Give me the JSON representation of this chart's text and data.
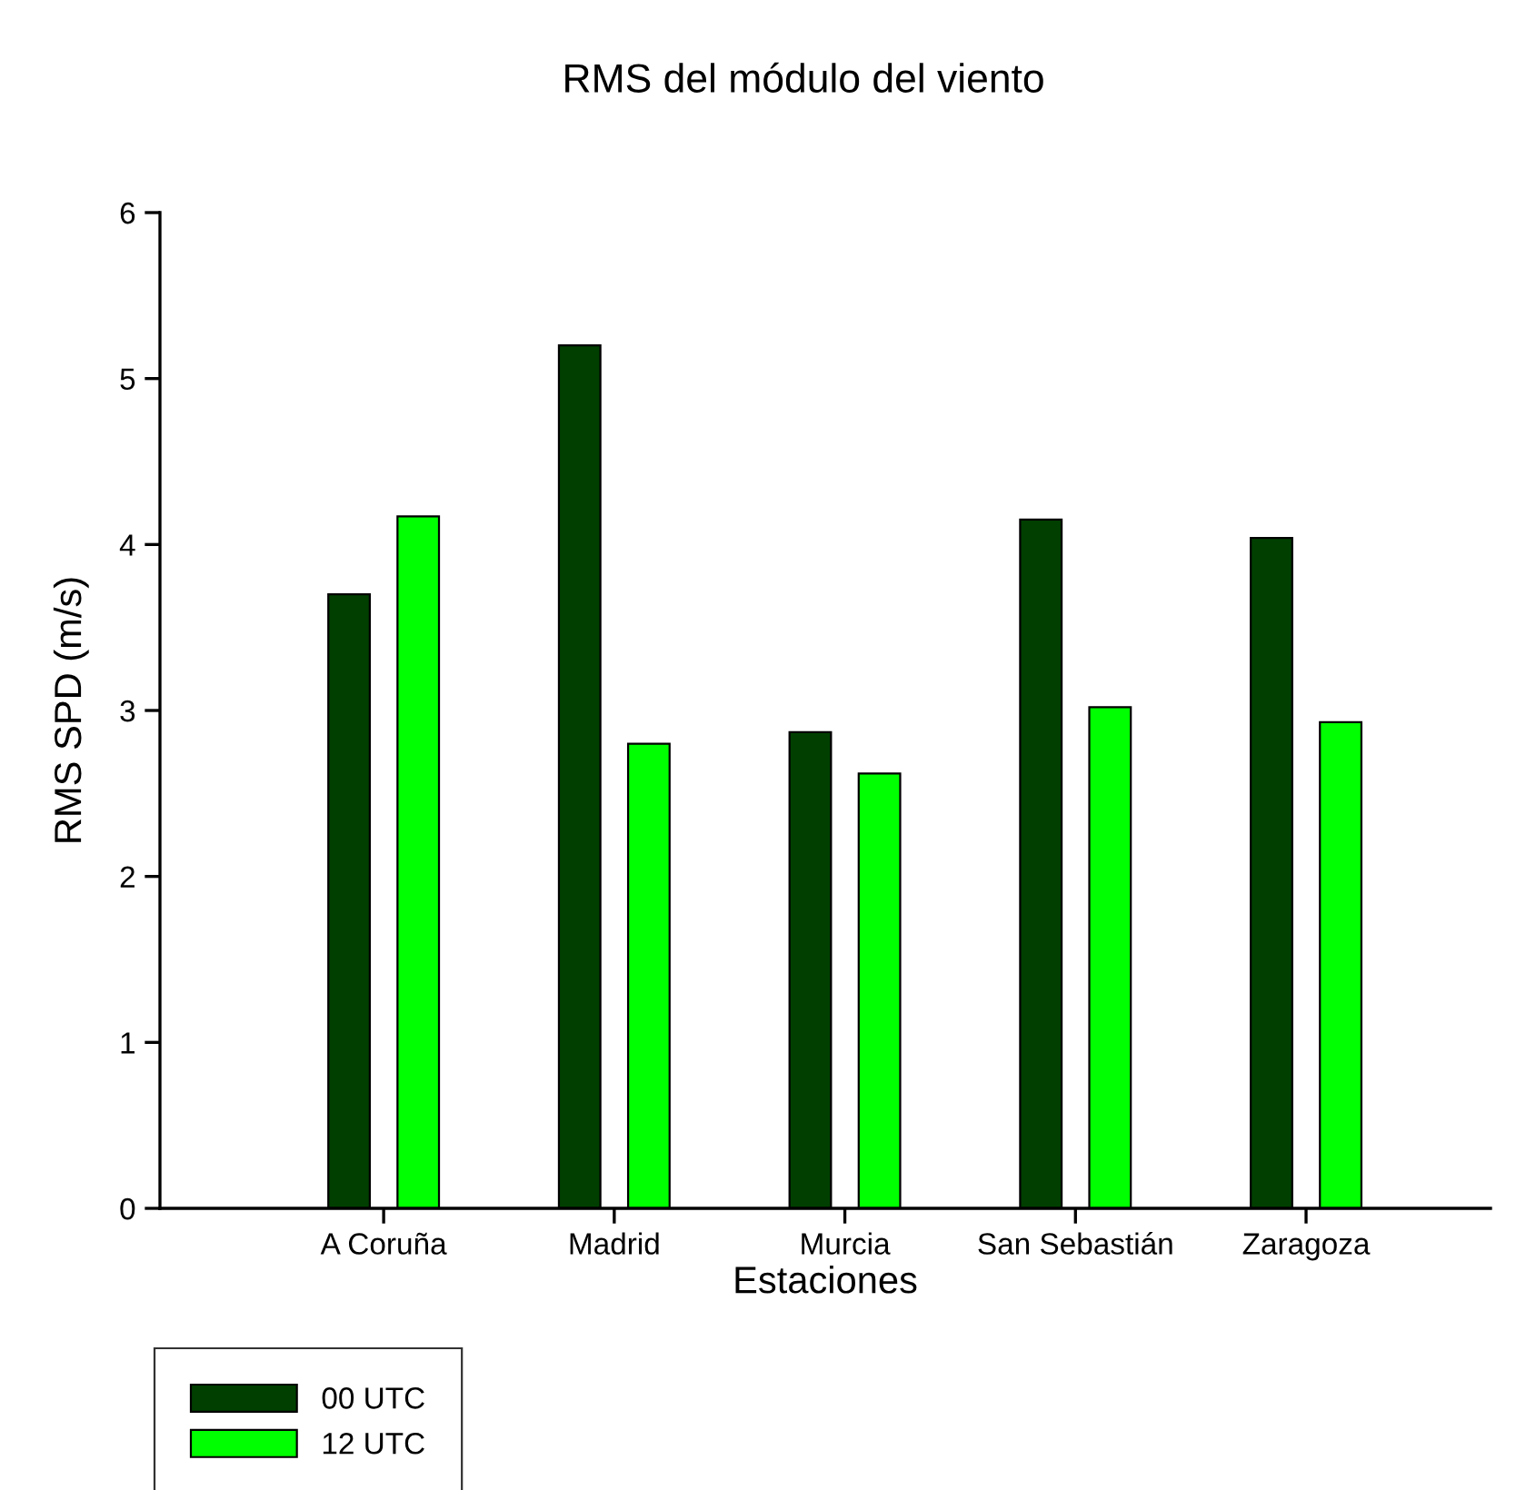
{
  "chart_data": {
    "type": "bar",
    "title": "RMS del módulo del viento",
    "xlabel": "Estaciones",
    "ylabel": "RMS SPD (m/s)",
    "categories": [
      "A Coruña",
      "Madrid",
      "Murcia",
      "San Sebastián",
      "Zaragoza"
    ],
    "series": [
      {
        "name": "00 UTC",
        "color": "#003f00",
        "values": [
          3.7,
          5.2,
          2.87,
          4.15,
          4.04
        ]
      },
      {
        "name": "12 UTC",
        "color": "#00ff00",
        "values": [
          4.17,
          2.8,
          2.62,
          3.02,
          2.93
        ]
      }
    ],
    "ylim": [
      0,
      6
    ],
    "yticks": [
      0,
      1,
      2,
      3,
      4,
      5,
      6
    ],
    "grid": false,
    "legend": "bottom left"
  }
}
